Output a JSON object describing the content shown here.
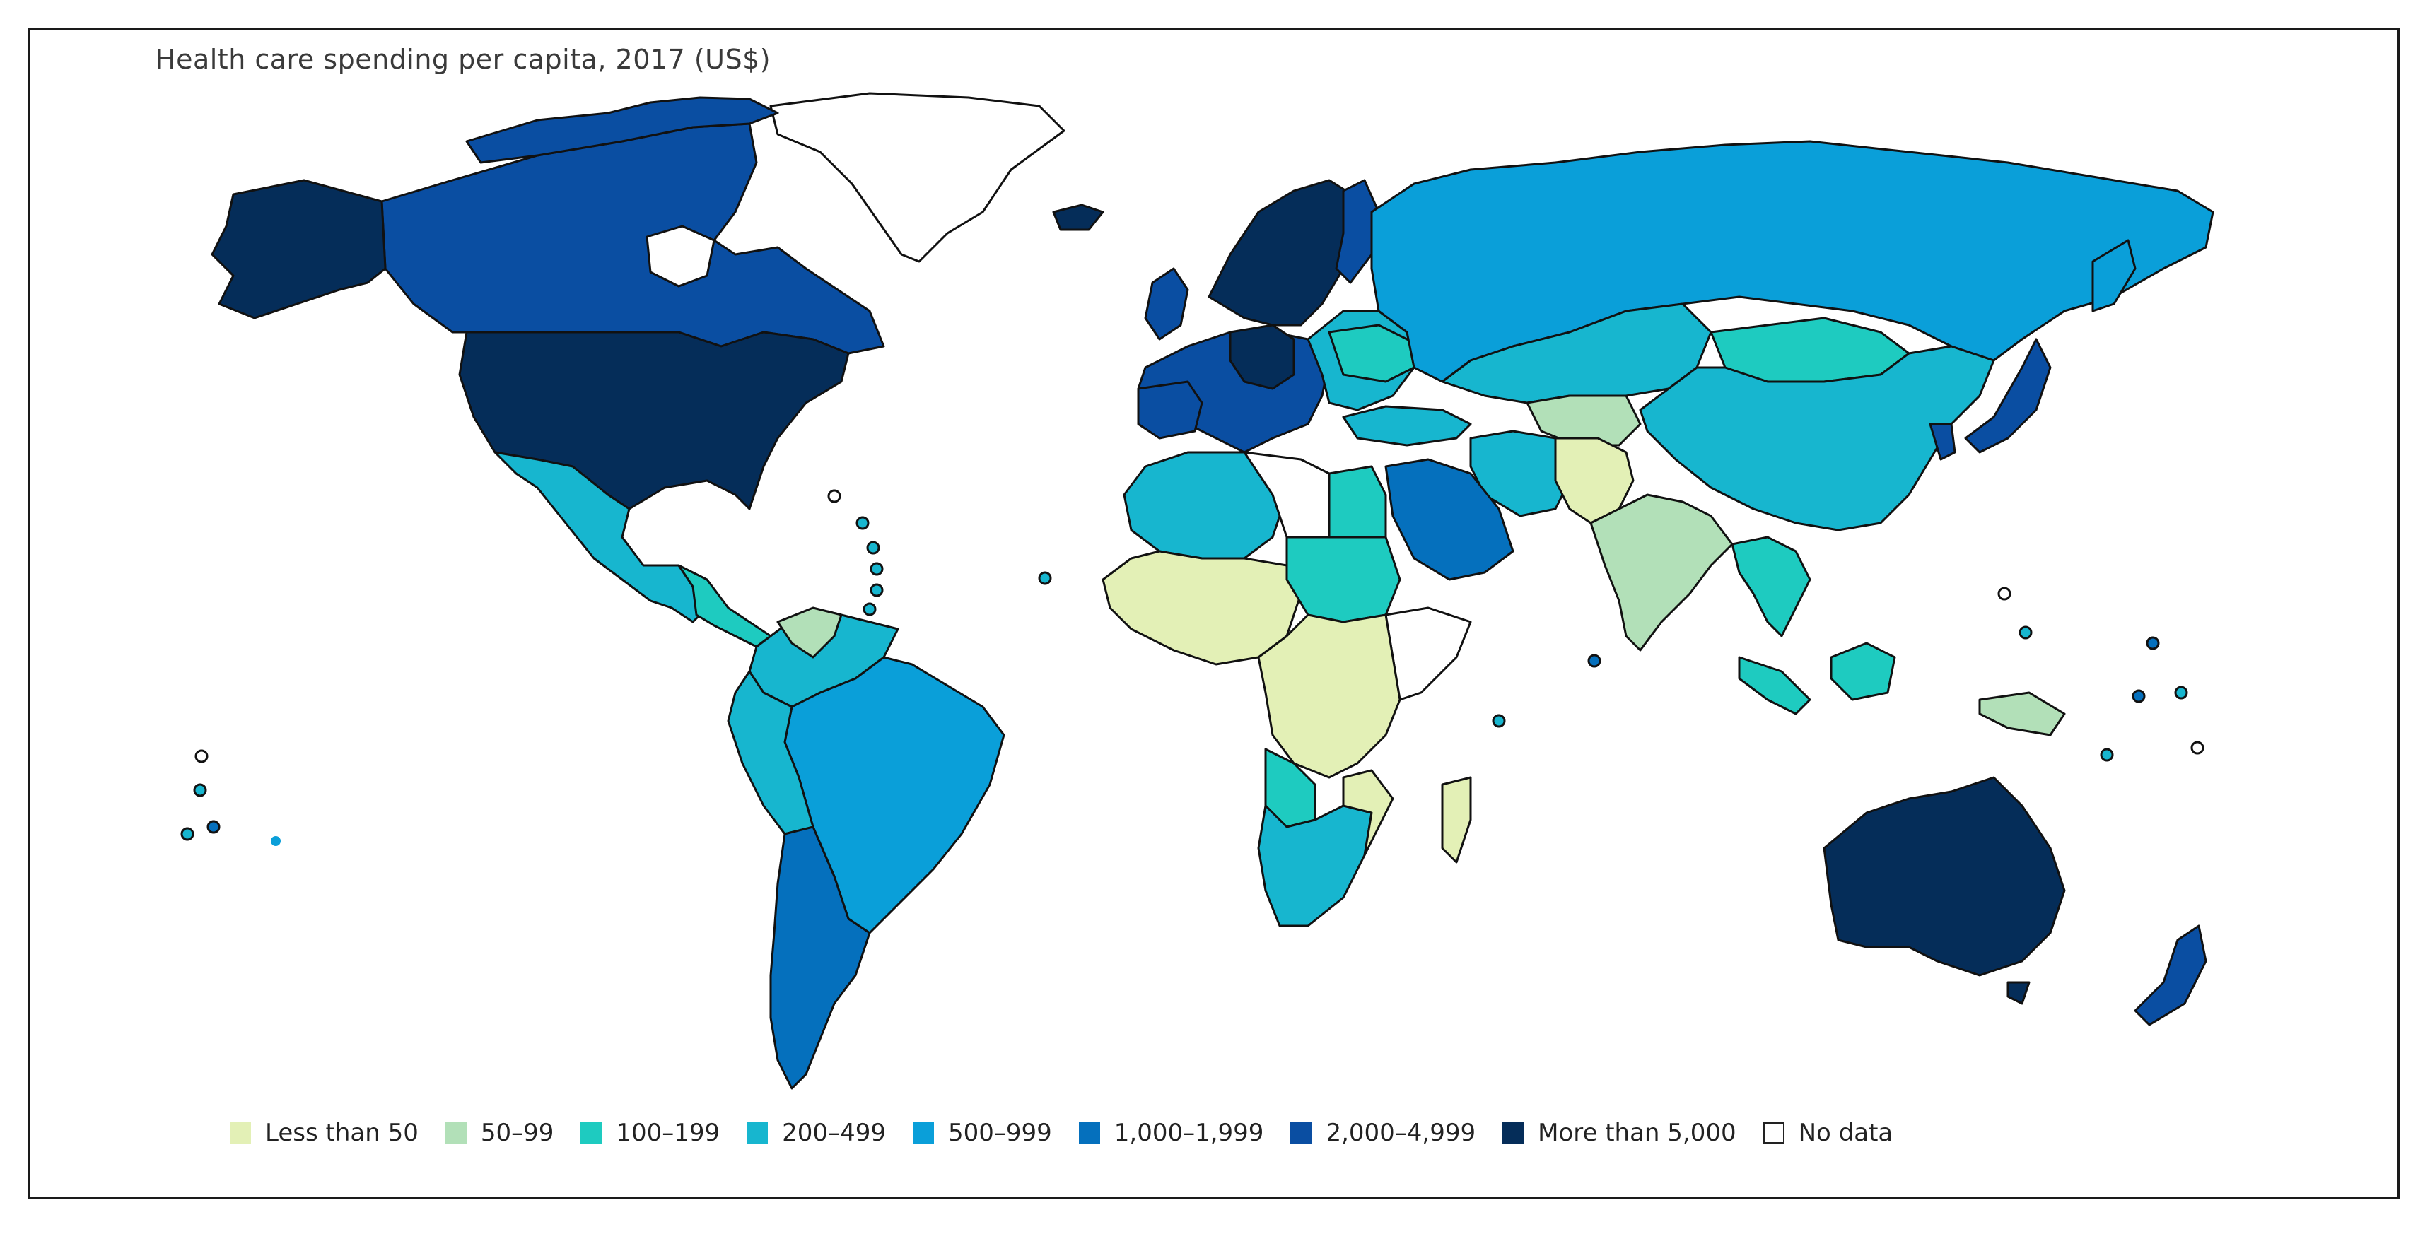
{
  "title": "Health care spending per capita, 2017 (US$)",
  "colors": {
    "lt50": "#e3f0b6",
    "c50": "#b2e0b8",
    "c100": "#1ecbc0",
    "c200": "#17b6cf",
    "c500": "#0a9fd9",
    "c1000": "#0570bd",
    "c2000": "#0a4ea2",
    "c5000": "#052d59",
    "nodata": "#ffffff",
    "border": "#111111",
    "grey": "#b0b0b0"
  },
  "legend": [
    {
      "label": "Less than 50",
      "color": "#e3f0b6"
    },
    {
      "label": "50–99",
      "color": "#b2e0b8"
    },
    {
      "label": "100–199",
      "color": "#1ecbc0"
    },
    {
      "label": "200–499",
      "color": "#17b6cf"
    },
    {
      "label": "500–999",
      "color": "#0a9fd9"
    },
    {
      "label": "1,000–1,999",
      "color": "#0570bd"
    },
    {
      "label": "2,000–4,999",
      "color": "#0a4ea2"
    },
    {
      "label": "More than 5,000",
      "color": "#052d59"
    },
    {
      "label": "No data",
      "color": "#ffffff"
    }
  ]
}
